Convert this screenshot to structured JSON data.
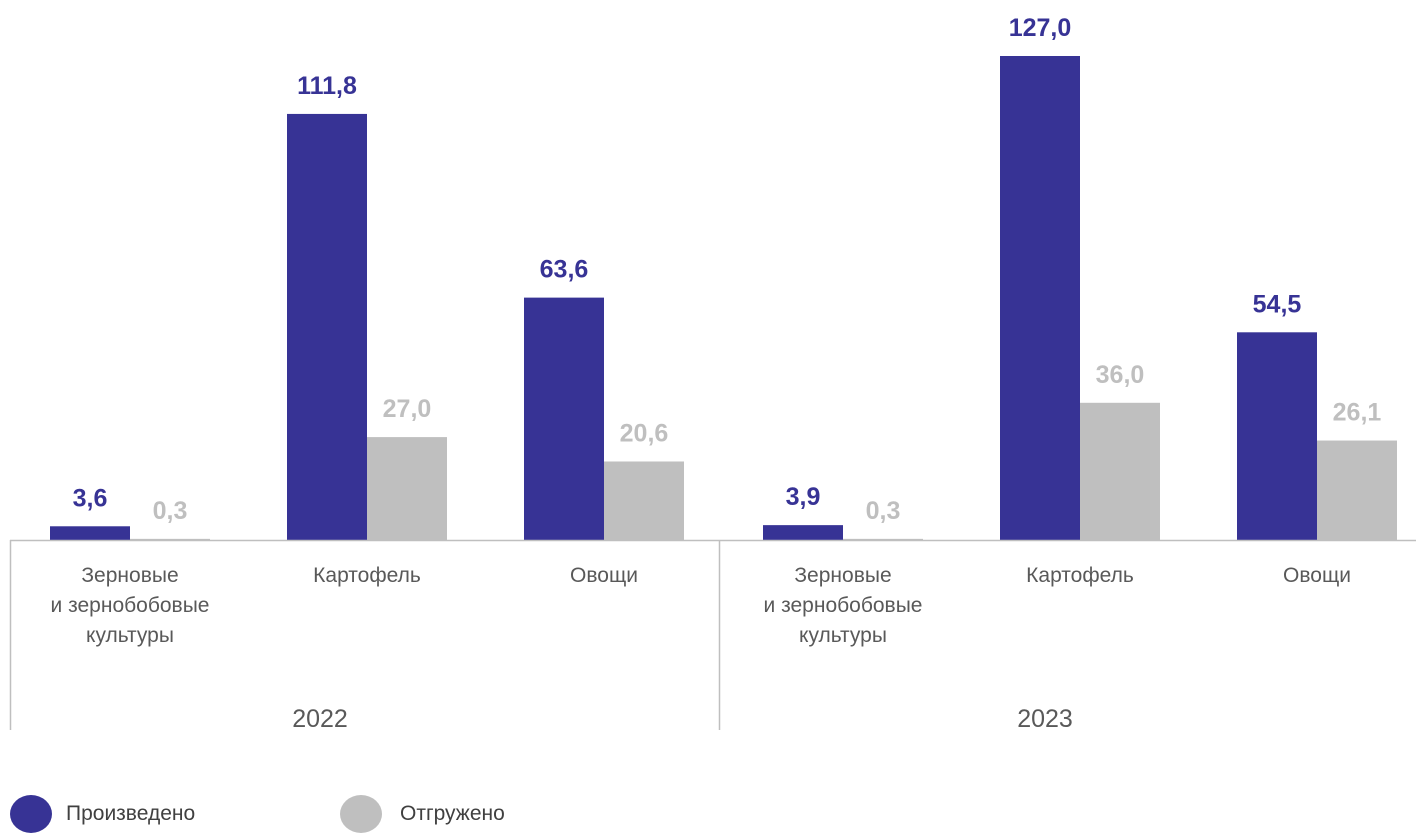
{
  "chart_data": {
    "type": "bar",
    "groups": [
      "2022",
      "2023"
    ],
    "categories": [
      [
        "Зерновые",
        "и зернобобовые",
        "культуры"
      ],
      [
        "Картофель"
      ],
      [
        "Овощи"
      ]
    ],
    "series": [
      {
        "name": "Произведено",
        "color": "#373395",
        "values": [
          [
            3.6,
            111.8,
            63.6
          ],
          [
            3.9,
            127.0,
            54.5
          ]
        ],
        "labels": [
          [
            "3,6",
            "111,8",
            "63,6"
          ],
          [
            "3,9",
            "127,0",
            "54,5"
          ]
        ]
      },
      {
        "name": "Отгружено",
        "color": "#bfbfbf",
        "values": [
          [
            0.3,
            27.0,
            20.6
          ],
          [
            0.3,
            36.0,
            26.1
          ]
        ],
        "labels": [
          [
            "0,3",
            "27,0",
            "20,6"
          ],
          [
            "0,3",
            "36,0",
            "26,1"
          ]
        ]
      }
    ],
    "ylim": [
      0,
      127
    ],
    "grid": false,
    "legend_position": "bottom-left"
  }
}
